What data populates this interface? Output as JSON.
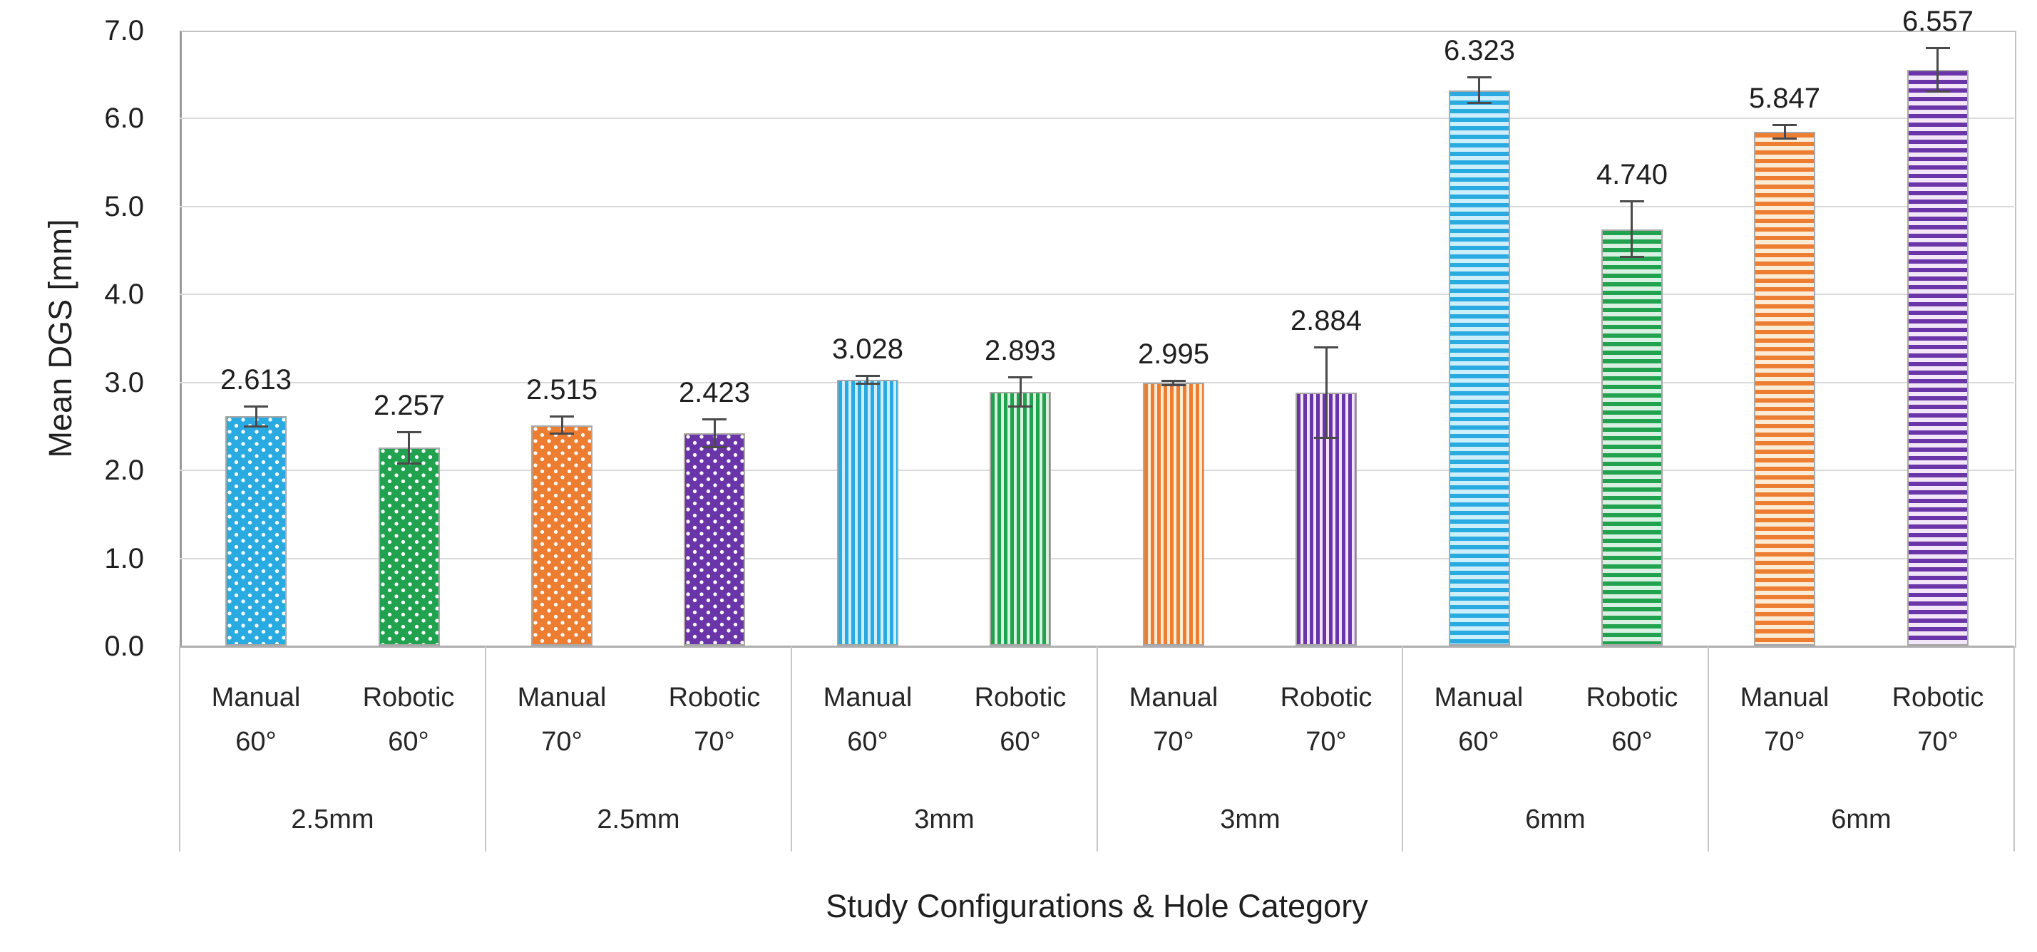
{
  "chart_data": {
    "type": "bar",
    "title": "",
    "xlabel": "Study Configurations & Hole Category",
    "ylabel": "Mean DGS [mm]",
    "ylim": [
      0.0,
      7.0
    ],
    "ytick_step": 1.0,
    "ytick_labels": [
      "0.0",
      "1.0",
      "2.0",
      "3.0",
      "4.0",
      "5.0",
      "6.0",
      "7.0"
    ],
    "grid": "horizontal",
    "legend": "none",
    "value_label_decimals": 3,
    "palette": {
      "blue": {
        "main": "#29abe2",
        "light": "#cdeefb"
      },
      "green": {
        "main": "#21a24e",
        "light": "#d9f1e2"
      },
      "orange": {
        "main": "#ed7d31",
        "light": "#fcecd5"
      },
      "purple": {
        "main": "#6a35a8",
        "light": "#f3e6f8"
      }
    },
    "pattern_by_hole": {
      "2.5mm": "dots",
      "3mm": "vstripes",
      "6mm": "hstripes"
    },
    "groups": [
      {
        "hole": "2.5mm",
        "pattern": "dots",
        "bars": [
          {
            "config": "Manual",
            "angle": "60°",
            "value": 2.613,
            "label": "2.613",
            "error": 0.12,
            "color": "blue"
          },
          {
            "config": "Robotic",
            "angle": "60°",
            "value": 2.257,
            "label": "2.257",
            "error": 0.18,
            "color": "green"
          }
        ]
      },
      {
        "hole": "2.5mm",
        "pattern": "dots",
        "bars": [
          {
            "config": "Manual",
            "angle": "70°",
            "value": 2.515,
            "label": "2.515",
            "error": 0.1,
            "color": "orange"
          },
          {
            "config": "Robotic",
            "angle": "70°",
            "value": 2.423,
            "label": "2.423",
            "error": 0.16,
            "color": "purple"
          }
        ]
      },
      {
        "hole": "3mm",
        "pattern": "vstripes",
        "bars": [
          {
            "config": "Manual",
            "angle": "60°",
            "value": 3.028,
            "label": "3.028",
            "error": 0.05,
            "color": "blue"
          },
          {
            "config": "Robotic",
            "angle": "60°",
            "value": 2.893,
            "label": "2.893",
            "error": 0.17,
            "color": "green"
          }
        ]
      },
      {
        "hole": "3mm",
        "pattern": "vstripes",
        "bars": [
          {
            "config": "Manual",
            "angle": "70°",
            "value": 2.995,
            "label": "2.995",
            "error": 0.03,
            "color": "orange"
          },
          {
            "config": "Robotic",
            "angle": "70°",
            "value": 2.884,
            "label": "2.884",
            "error": 0.52,
            "color": "purple"
          }
        ]
      },
      {
        "hole": "6mm",
        "pattern": "hstripes",
        "bars": [
          {
            "config": "Manual",
            "angle": "60°",
            "value": 6.323,
            "label": "6.323",
            "error": 0.15,
            "color": "blue"
          },
          {
            "config": "Robotic",
            "angle": "60°",
            "value": 4.74,
            "label": "4.740",
            "error": 0.32,
            "color": "green"
          }
        ]
      },
      {
        "hole": "6mm",
        "pattern": "hstripes",
        "bars": [
          {
            "config": "Manual",
            "angle": "70°",
            "value": 5.847,
            "label": "5.847",
            "error": 0.08,
            "color": "orange"
          },
          {
            "config": "Robotic",
            "angle": "70°",
            "value": 6.557,
            "label": "6.557",
            "error": 0.25,
            "color": "purple"
          }
        ]
      }
    ]
  }
}
